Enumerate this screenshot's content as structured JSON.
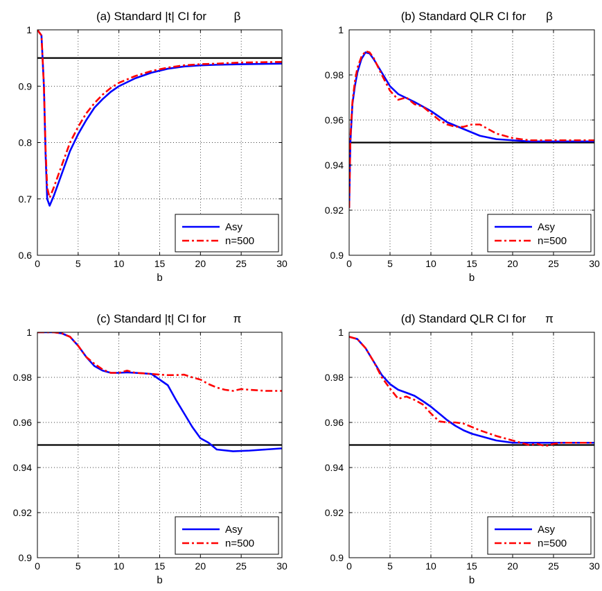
{
  "chart_data": [
    {
      "type": "line",
      "title": "(a) Standard |t| CI for",
      "title_symbol": "β",
      "xlabel": "b",
      "ylabel": "",
      "xlim": [
        0,
        30
      ],
      "ylim": [
        0.6,
        1.0
      ],
      "xticks": [
        0,
        5,
        10,
        15,
        20,
        25,
        30
      ],
      "xtick_labels": [
        "0",
        "5",
        "10",
        "15",
        "20",
        "25",
        "30"
      ],
      "yticks": [
        0.6,
        0.7,
        0.8,
        0.9,
        1.0
      ],
      "ytick_labels": [
        "0.6",
        "0.7",
        "0.8",
        "0.9",
        "1"
      ],
      "grid": true,
      "legend": "bottom-right",
      "reference_line": 0.95,
      "series": [
        {
          "name": "Asy",
          "color": "#0000ff",
          "style": "solid",
          "x": [
            0,
            0.5,
            0.8,
            1.0,
            1.2,
            1.5,
            2,
            3,
            4,
            5,
            6,
            7,
            8,
            9,
            10,
            12,
            14,
            16,
            18,
            20,
            22,
            25,
            30
          ],
          "y": [
            1.0,
            0.99,
            0.9,
            0.78,
            0.7,
            0.688,
            0.705,
            0.745,
            0.785,
            0.815,
            0.84,
            0.862,
            0.877,
            0.89,
            0.9,
            0.914,
            0.924,
            0.931,
            0.935,
            0.937,
            0.938,
            0.939,
            0.94
          ]
        },
        {
          "name": "n=500",
          "color": "#ff0000",
          "style": "dashdot",
          "x": [
            0,
            0.5,
            0.8,
            1.0,
            1.2,
            1.5,
            2,
            3,
            4,
            5,
            6,
            7,
            8,
            9,
            10,
            12,
            14,
            16,
            18,
            20,
            22,
            25,
            30
          ],
          "y": [
            1.0,
            0.99,
            0.9,
            0.79,
            0.72,
            0.702,
            0.72,
            0.76,
            0.8,
            0.828,
            0.852,
            0.87,
            0.885,
            0.897,
            0.906,
            0.918,
            0.927,
            0.933,
            0.937,
            0.939,
            0.94,
            0.942,
            0.943
          ]
        }
      ]
    },
    {
      "type": "line",
      "title": "(b) Standard QLR CI for",
      "title_symbol": "β",
      "xlabel": "b",
      "ylabel": "",
      "xlim": [
        0,
        30
      ],
      "ylim": [
        0.9,
        1.0
      ],
      "xticks": [
        0,
        5,
        10,
        15,
        20,
        25,
        30
      ],
      "xtick_labels": [
        "0",
        "5",
        "10",
        "15",
        "20",
        "25",
        "30"
      ],
      "yticks": [
        0.9,
        0.92,
        0.94,
        0.96,
        0.98,
        1.0
      ],
      "ytick_labels": [
        "0.9",
        "0.92",
        "0.94",
        "0.96",
        "0.98",
        "1"
      ],
      "grid": true,
      "legend": "bottom-right",
      "reference_line": 0.95,
      "series": [
        {
          "name": "Asy",
          "color": "#0000ff",
          "style": "solid",
          "x": [
            0,
            0.15,
            0.4,
            0.7,
            1.0,
            1.5,
            2,
            2.5,
            3,
            4,
            5,
            6,
            8,
            10,
            12,
            14,
            16,
            18,
            20,
            22,
            25,
            30
          ],
          "y": [
            0.921,
            0.95,
            0.967,
            0.975,
            0.981,
            0.987,
            0.99,
            0.9895,
            0.987,
            0.981,
            0.975,
            0.9715,
            0.968,
            0.964,
            0.959,
            0.956,
            0.953,
            0.9515,
            0.951,
            0.9505,
            0.9505,
            0.9505
          ]
        },
        {
          "name": "n=500",
          "color": "#ff0000",
          "style": "dashdot",
          "x": [
            0,
            0.15,
            0.4,
            0.7,
            1.0,
            1.5,
            2,
            2.5,
            3,
            4,
            5,
            6,
            7,
            8,
            9,
            10,
            11,
            12,
            13,
            14,
            15,
            16,
            17,
            18,
            20,
            22,
            25,
            30
          ],
          "y": [
            0.921,
            0.952,
            0.968,
            0.977,
            0.983,
            0.988,
            0.9905,
            0.99,
            0.9875,
            0.98,
            0.973,
            0.969,
            0.97,
            0.967,
            0.966,
            0.963,
            0.96,
            0.958,
            0.957,
            0.957,
            0.958,
            0.958,
            0.956,
            0.954,
            0.952,
            0.951,
            0.951,
            0.951
          ]
        }
      ]
    },
    {
      "type": "line",
      "title": "(c) Standard |t| CI for",
      "title_symbol": "π",
      "xlabel": "b",
      "ylabel": "",
      "xlim": [
        0,
        30
      ],
      "ylim": [
        0.9,
        1.0
      ],
      "xticks": [
        0,
        5,
        10,
        15,
        20,
        25,
        30
      ],
      "xtick_labels": [
        "0",
        "5",
        "10",
        "15",
        "20",
        "25",
        "30"
      ],
      "yticks": [
        0.9,
        0.92,
        0.94,
        0.96,
        0.98,
        1.0
      ],
      "ytick_labels": [
        "0.9",
        "0.92",
        "0.94",
        "0.96",
        "0.98",
        "1"
      ],
      "grid": true,
      "legend": "bottom-right",
      "reference_line": 0.95,
      "series": [
        {
          "name": "Asy",
          "color": "#0000ff",
          "style": "solid",
          "x": [
            0,
            1,
            2,
            3,
            4,
            5,
            6,
            7,
            8,
            9,
            10,
            11,
            12,
            13,
            14,
            15,
            16,
            17,
            18,
            19,
            20,
            21,
            22,
            24,
            26,
            28,
            30
          ],
          "y": [
            1.0,
            1.0,
            1.0,
            0.9995,
            0.998,
            0.994,
            0.989,
            0.985,
            0.983,
            0.982,
            0.982,
            0.9822,
            0.982,
            0.9818,
            0.9815,
            0.979,
            0.9765,
            0.97,
            0.964,
            0.958,
            0.953,
            0.951,
            0.948,
            0.9472,
            0.9475,
            0.948,
            0.9485
          ]
        },
        {
          "name": "n=500",
          "color": "#ff0000",
          "style": "dashdot",
          "x": [
            0,
            1,
            2,
            3,
            4,
            5,
            6,
            7,
            8,
            9,
            10,
            11,
            12,
            13,
            14,
            15,
            16,
            17,
            18,
            19,
            20,
            21,
            22,
            23,
            24,
            25,
            26,
            28,
            30
          ],
          "y": [
            1.0,
            1.0,
            1.0,
            0.9995,
            0.998,
            0.994,
            0.989,
            0.986,
            0.9835,
            0.982,
            0.982,
            0.983,
            0.982,
            0.9818,
            0.9815,
            0.9812,
            0.981,
            0.981,
            0.9812,
            0.98,
            0.979,
            0.977,
            0.9755,
            0.9745,
            0.974,
            0.9748,
            0.9745,
            0.974,
            0.974
          ]
        }
      ]
    },
    {
      "type": "line",
      "title": "(d) Standard QLR CI for",
      "title_symbol": "π",
      "xlabel": "b",
      "ylabel": "",
      "xlim": [
        0,
        30
      ],
      "ylim": [
        0.9,
        1.0
      ],
      "xticks": [
        0,
        5,
        10,
        15,
        20,
        25,
        30
      ],
      "xtick_labels": [
        "0",
        "5",
        "10",
        "15",
        "20",
        "25",
        "30"
      ],
      "yticks": [
        0.9,
        0.92,
        0.94,
        0.96,
        0.98,
        1.0
      ],
      "ytick_labels": [
        "0.9",
        "0.92",
        "0.94",
        "0.96",
        "0.98",
        "1"
      ],
      "grid": true,
      "legend": "bottom-right",
      "reference_line": 0.95,
      "series": [
        {
          "name": "Asy",
          "color": "#0000ff",
          "style": "solid",
          "x": [
            0,
            1,
            2,
            3,
            4,
            5,
            6,
            7,
            8,
            9,
            10,
            11,
            12,
            13,
            14,
            15,
            16,
            18,
            20,
            22,
            24,
            26,
            28,
            30
          ],
          "y": [
            0.998,
            0.997,
            0.993,
            0.987,
            0.981,
            0.977,
            0.9745,
            0.9732,
            0.9718,
            0.9695,
            0.967,
            0.964,
            0.961,
            0.9585,
            0.9565,
            0.955,
            0.954,
            0.952,
            0.951,
            0.951,
            0.951,
            0.951,
            0.951,
            0.951
          ]
        },
        {
          "name": "n=500",
          "color": "#ff0000",
          "style": "dashdot",
          "x": [
            0,
            1,
            2,
            3,
            4,
            5,
            6,
            7,
            8,
            9,
            10,
            11,
            12,
            13,
            14,
            15,
            16,
            18,
            20,
            22,
            23,
            24,
            25,
            26,
            28,
            30
          ],
          "y": [
            0.998,
            0.997,
            0.993,
            0.987,
            0.98,
            0.975,
            0.9705,
            0.9715,
            0.97,
            0.968,
            0.964,
            0.9605,
            0.96,
            0.96,
            0.9595,
            0.958,
            0.9565,
            0.954,
            0.952,
            0.95,
            0.9505,
            0.9495,
            0.9505,
            0.951,
            0.951,
            0.951
          ]
        }
      ]
    }
  ]
}
